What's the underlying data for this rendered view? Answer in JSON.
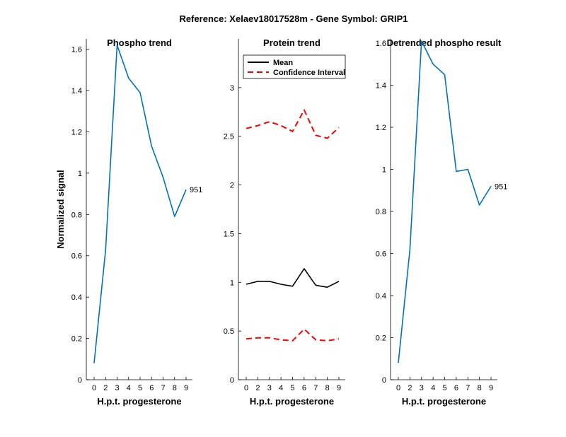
{
  "figure_title": "Reference:  Xelaev18017528m - Gene Symbol:  GRIP1",
  "chart_data": [
    {
      "type": "line",
      "title": "Phospho trend",
      "xlabel": "H.p.t. progesterone",
      "ylabel": "Normalized signal",
      "categories": [
        "0",
        "2",
        "3",
        "4",
        "5",
        "6",
        "7",
        "8",
        "9"
      ],
      "ylim": [
        0,
        1.65
      ],
      "yticks": [
        "0",
        "0.2",
        "0.4",
        "0.6",
        "0.8",
        "1",
        "1.2",
        "1.4",
        "1.6"
      ],
      "series": [
        {
          "values": [
            0.08,
            0.63,
            1.62,
            1.46,
            1.39,
            1.13,
            0.98,
            0.79,
            0.92
          ],
          "color": "#0072BD",
          "style": "solid"
        }
      ],
      "end_label": "951",
      "grid": false
    },
    {
      "type": "line",
      "title": "Protein trend",
      "xlabel": "H.p.t. progesterone",
      "ylabel": "",
      "categories": [
        "0",
        "2",
        "3",
        "4",
        "5",
        "6",
        "7",
        "8",
        "9"
      ],
      "ylim": [
        0,
        3.5
      ],
      "yticks": [
        "0",
        "0.5",
        "1",
        "1.5",
        "2",
        "2.5",
        "3"
      ],
      "legend": {
        "position": "top-left",
        "entries": [
          "Mean",
          "Confidence Interval"
        ]
      },
      "series": [
        {
          "name": "Mean",
          "values": [
            0.98,
            1.01,
            1.01,
            0.98,
            0.96,
            1.14,
            0.97,
            0.95,
            1.01
          ],
          "color": "#000000",
          "style": "solid"
        },
        {
          "name": "Confidence Interval",
          "values": [
            2.58,
            2.61,
            2.65,
            2.61,
            2.55,
            2.77,
            2.51,
            2.48,
            2.59
          ],
          "color": "#FF0000",
          "style": "dashed"
        },
        {
          "name": "",
          "values": [
            0.42,
            0.43,
            0.43,
            0.41,
            0.4,
            0.52,
            0.41,
            0.4,
            0.42
          ],
          "color": "#FF0000",
          "style": "dashed"
        }
      ],
      "grid": false
    },
    {
      "type": "line",
      "title": "Detrended phospho result",
      "xlabel": "H.p.t. progesterone",
      "ylabel": "",
      "categories": [
        "0",
        "2",
        "3",
        "4",
        "5",
        "6",
        "7",
        "8",
        "9"
      ],
      "ylim": [
        0,
        1.62
      ],
      "yticks": [
        "0",
        "0.2",
        "0.4",
        "0.6",
        "0.8",
        "1",
        "1.2",
        "1.4",
        "1.6"
      ],
      "series": [
        {
          "values": [
            0.08,
            0.62,
            1.61,
            1.5,
            1.45,
            0.99,
            1.0,
            0.83,
            0.92
          ],
          "color": "#0072BD",
          "style": "solid"
        }
      ],
      "end_label": "951",
      "grid": false
    }
  ]
}
